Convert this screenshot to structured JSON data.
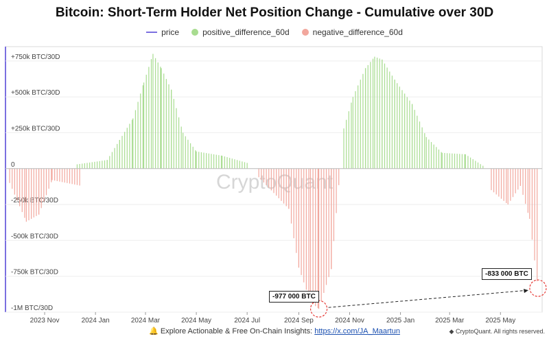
{
  "title": "Bitcoin: Short-Term Holder Net Position Change - Cumulative over 30D",
  "legend": [
    {
      "label": "price",
      "color": "#7b6fe0",
      "kind": "line"
    },
    {
      "label": "positive_difference_60d",
      "color": "#a8dc90",
      "kind": "dot"
    },
    {
      "label": "negative_difference_60d",
      "color": "#f2a79d",
      "kind": "dot"
    }
  ],
  "footer": {
    "text": "Explore Actionable & Free On-Chain Insights:",
    "link": "https://x.com/JA_Maartun"
  },
  "copyright": "CryptoQuant. All rights reserved.",
  "watermark": "CryptoQuant",
  "colors": {
    "price": "#7b6fe0",
    "positive": "#a8dc90",
    "negative": "#f2a79d"
  },
  "chart_data": {
    "type": "bar",
    "title": "Bitcoin: Short-Term Holder Net Position Change - Cumulative over 30D",
    "y_left_ticks": [
      "+750k BTC/30D",
      "+500k BTC/30D",
      "+250k BTC/30D",
      "0",
      "-250k BTC/30D",
      "-500k BTC/30D",
      "-750k BTC/30D",
      "-1M BTC/30D"
    ],
    "y_left_values": [
      750000,
      500000,
      250000,
      0,
      -250000,
      -500000,
      -750000,
      -1000000
    ],
    "x_ticks": [
      "2023 Nov",
      "2024 Jan",
      "2024 Mar",
      "2024 May",
      "2024 Jul",
      "2024 Sep",
      "2024 Nov",
      "2025 Jan",
      "2025 Mar",
      "2025 May"
    ],
    "x_range": [
      "2023-09-15",
      "2025-06-20"
    ],
    "ylim": [
      -1000000,
      850000
    ],
    "series": [
      {
        "name": "positive_difference_60d",
        "values": [
          [
            "2023-12-10",
            30000
          ],
          [
            "2024-01-15",
            60000
          ],
          [
            "2024-01-30",
            200000
          ],
          [
            "2024-02-15",
            350000
          ],
          [
            "2024-02-28",
            600000
          ],
          [
            "2024-03-10",
            800000
          ],
          [
            "2024-03-20",
            700000
          ],
          [
            "2024-04-01",
            550000
          ],
          [
            "2024-04-15",
            250000
          ],
          [
            "2024-05-01",
            120000
          ],
          [
            "2024-06-01",
            90000
          ],
          [
            "2024-07-01",
            40000
          ],
          [
            "2024-10-25",
            280000
          ],
          [
            "2024-11-05",
            500000
          ],
          [
            "2024-11-20",
            700000
          ],
          [
            "2024-12-01",
            780000
          ],
          [
            "2024-12-10",
            760000
          ],
          [
            "2024-12-25",
            620000
          ],
          [
            "2025-01-15",
            450000
          ],
          [
            "2025-02-01",
            220000
          ],
          [
            "2025-02-20",
            110000
          ],
          [
            "2025-03-20",
            100000
          ],
          [
            "2025-04-10",
            20000
          ]
        ]
      },
      {
        "name": "negative_difference_60d",
        "values": [
          [
            "2023-09-20",
            -100000
          ],
          [
            "2023-10-10",
            -370000
          ],
          [
            "2023-10-25",
            -320000
          ],
          [
            "2023-11-10",
            -80000
          ],
          [
            "2023-12-15",
            -120000
          ],
          [
            "2024-07-15",
            -60000
          ],
          [
            "2024-08-20",
            -280000
          ],
          [
            "2024-09-01",
            -690000
          ],
          [
            "2024-09-15",
            -930000
          ],
          [
            "2024-09-25",
            -977000
          ],
          [
            "2024-10-10",
            -700000
          ],
          [
            "2024-10-20",
            -50000
          ],
          [
            "2025-04-20",
            -150000
          ],
          [
            "2025-05-10",
            -250000
          ],
          [
            "2025-05-25",
            -120000
          ],
          [
            "2025-06-05",
            -350000
          ],
          [
            "2025-06-15",
            -833000
          ]
        ]
      }
    ],
    "annotations": [
      {
        "text": "-977 000 BTC",
        "date": "2024-09-25",
        "value": -977000
      },
      {
        "text": "-833 000 BTC",
        "date": "2025-06-15",
        "value": -833000
      }
    ]
  }
}
